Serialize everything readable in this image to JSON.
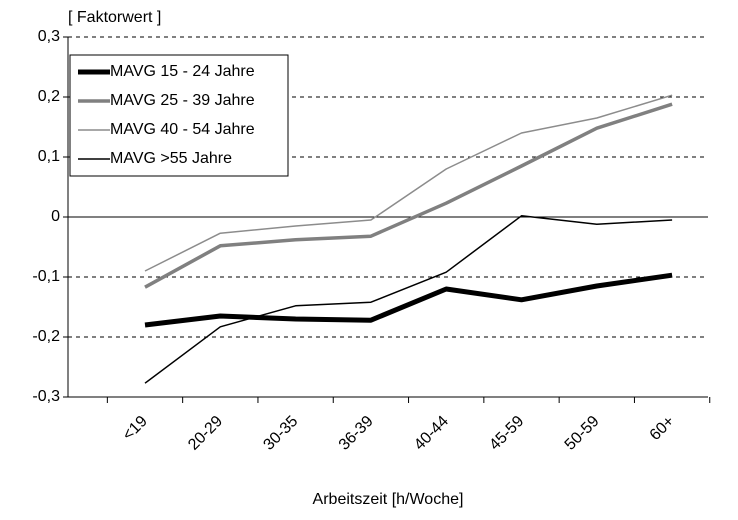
{
  "chart_data": {
    "type": "line",
    "y_label": "[ Faktorwert ]",
    "x_label": "Arbeitszeit [h/Woche]",
    "categories": [
      "<19",
      "20-29",
      "30-35",
      "36-39",
      "40-44",
      "45-59",
      "50-59",
      "60+"
    ],
    "series": [
      {
        "name": "MAVG 15 - 24 Jahre",
        "color": "#000000",
        "values": [
          -0.18,
          -0.165,
          -0.17,
          -0.172,
          -0.12,
          -0.138,
          -0.115,
          -0.097
        ]
      },
      {
        "name": "MAVG 25 - 39 Jahre",
        "color": "#808080",
        "values": [
          -0.117,
          -0.048,
          -0.038,
          -0.032,
          0.023,
          0.085,
          0.148,
          0.188
        ]
      },
      {
        "name": "MAVG 40 - 54 Jahre",
        "color": "#8c8c8c",
        "values": [
          -0.09,
          -0.027,
          -0.015,
          -0.005,
          0.08,
          0.14,
          0.165,
          0.203
        ]
      },
      {
        "name": "MAVG >55 Jahre",
        "color": "#000000",
        "values": [
          -0.277,
          -0.183,
          -0.148,
          -0.142,
          -0.092,
          0.002,
          -0.012,
          -0.005
        ]
      }
    ],
    "ylim": [
      -0.3,
      0.3
    ],
    "yticks": [
      {
        "value": -0.3,
        "label": "-0,3"
      },
      {
        "value": -0.2,
        "label": "-0,2"
      },
      {
        "value": -0.1,
        "label": "-0,1"
      },
      0,
      {
        "value": 0.1,
        "label": "0,1"
      },
      {
        "value": 0.2,
        "label": "0,2"
      },
      {
        "value": 0.3,
        "label": "0,3"
      }
    ],
    "grid": true,
    "legend": "upper left"
  }
}
